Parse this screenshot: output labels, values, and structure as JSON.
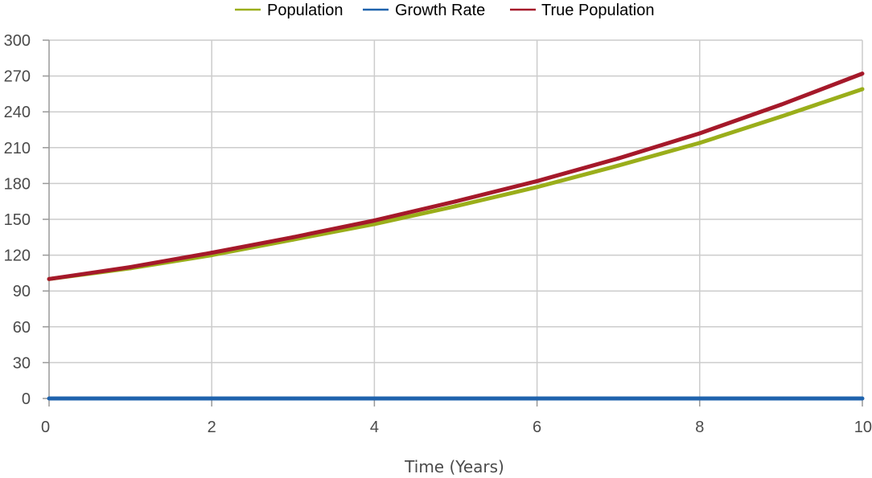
{
  "chart_data": {
    "type": "line",
    "title": "",
    "xlabel": "Time (Years)",
    "ylabel": "",
    "xlim": [
      0,
      10
    ],
    "ylim": [
      0,
      300
    ],
    "x_ticks": [
      0,
      2,
      4,
      6,
      8,
      10
    ],
    "y_ticks": [
      0,
      30,
      60,
      90,
      120,
      150,
      180,
      210,
      240,
      270,
      300
    ],
    "grid": true,
    "legend_position": "top-center",
    "x": [
      0,
      1,
      2,
      3,
      4,
      5,
      6,
      7,
      8,
      9,
      10
    ],
    "series": [
      {
        "name": "Population",
        "color": "#9aae1a",
        "values": [
          100,
          109,
          120,
          133,
          146,
          161,
          177,
          195,
          214,
          236,
          259
        ]
      },
      {
        "name": "Growth Rate",
        "color": "#1f63ad",
        "values": [
          0,
          0,
          0,
          0,
          0,
          0,
          0,
          0,
          0,
          0,
          0
        ]
      },
      {
        "name": "True Population",
        "color": "#a5192a",
        "values": [
          100,
          110,
          122,
          135,
          149,
          165,
          182,
          201,
          222,
          246,
          272
        ]
      }
    ]
  }
}
